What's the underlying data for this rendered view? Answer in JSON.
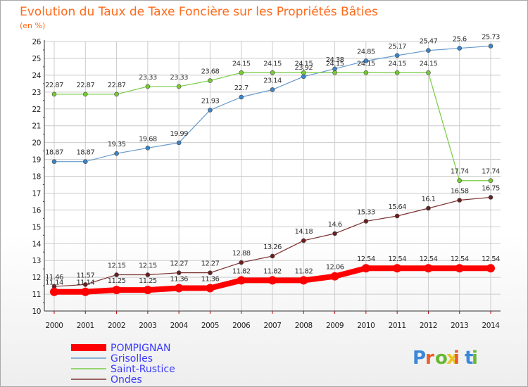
{
  "title": "Evolution du Taux de Taxe Foncière sur les Propriétés Bâties",
  "unit_label": "(en %)",
  "logo": {
    "text": "Proxiti",
    "letter_colors": [
      "#3b87d8",
      "#e95d2a",
      "#69b832",
      "#e9c422",
      "#e95d2a",
      "#3b87d8",
      "#69b832"
    ]
  },
  "colors": {
    "title": "#ff6a1a",
    "grid": "#cccccc",
    "axis_tick": "#cc0000",
    "legend_text": "#3a3aff"
  },
  "chart_data": {
    "type": "line",
    "title": "Evolution du Taux de Taxe Foncière sur les Propriétés Bâties",
    "ylabel": "(en %)",
    "ylim": [
      10,
      26
    ],
    "yticks": [
      10,
      11,
      12,
      13,
      14,
      15,
      16,
      17,
      18,
      19,
      20,
      21,
      22,
      23,
      24,
      25,
      26
    ],
    "x": [
      2000,
      2001,
      2002,
      2003,
      2004,
      2005,
      2006,
      2007,
      2008,
      2009,
      2010,
      2011,
      2012,
      2013,
      2014
    ],
    "grid": true,
    "legend_position": "bottom-left",
    "series": [
      {
        "name": "POMPIGNAN",
        "color": "#ff0000",
        "dot_color": "#ff0000",
        "width": 8,
        "values": [
          11.14,
          11.14,
          11.25,
          11.25,
          11.36,
          11.36,
          11.82,
          11.82,
          11.82,
          12.06,
          12.54,
          12.54,
          12.54,
          12.54,
          12.54
        ],
        "labels": [
          "11.14",
          "11.14",
          "11.25",
          "11.25",
          "11.36",
          "11.36",
          "11.82",
          "11.82",
          "11.82",
          "12.06",
          "12.54",
          "12.54",
          "12.54",
          "12.54",
          "12.54"
        ]
      },
      {
        "name": "Grisolles",
        "color": "#6699cc",
        "dot_color": "#3d85c6",
        "width": 1.2,
        "values": [
          18.87,
          18.87,
          19.35,
          19.68,
          19.99,
          21.93,
          22.7,
          23.14,
          23.92,
          24.38,
          24.85,
          25.17,
          25.47,
          25.6,
          25.73
        ],
        "labels": [
          "18.87",
          "18.87",
          "19.35",
          "19.68",
          "19.99",
          "21.93",
          "22.7",
          "23.14",
          "23.92",
          "24.38",
          "24.85",
          "25.17",
          "25.47",
          "25.6",
          "25.73"
        ]
      },
      {
        "name": "Saint-Rustice",
        "color": "#77cc44",
        "dot_color": "#77cc33",
        "width": 1.2,
        "values": [
          22.87,
          22.87,
          22.87,
          23.33,
          23.33,
          23.68,
          24.15,
          24.15,
          24.15,
          24.15,
          24.15,
          24.15,
          24.15,
          17.74,
          17.74
        ],
        "labels": [
          "22.87",
          "22.87",
          "22.87",
          "23.33",
          "23.33",
          "23.68",
          "24.15",
          "24.15",
          "24.15",
          "24.15",
          "24.15",
          "24.15",
          "24.15",
          "17.74",
          "17.74"
        ]
      },
      {
        "name": "Ondes",
        "color": "#7a3030",
        "dot_color": "#6b1f1f",
        "width": 1.2,
        "values": [
          11.46,
          11.57,
          12.15,
          12.15,
          12.27,
          12.27,
          12.88,
          13.26,
          14.18,
          14.6,
          15.33,
          15.64,
          16.1,
          16.58,
          16.75
        ],
        "labels": [
          "11.46",
          "11.57",
          "12.15",
          "12.15",
          "12.27",
          "12.27",
          "12.88",
          "13.26",
          "14.18",
          "14.6",
          "15.33",
          "15.64",
          "16.1",
          "16.58",
          "16.75"
        ]
      }
    ]
  }
}
